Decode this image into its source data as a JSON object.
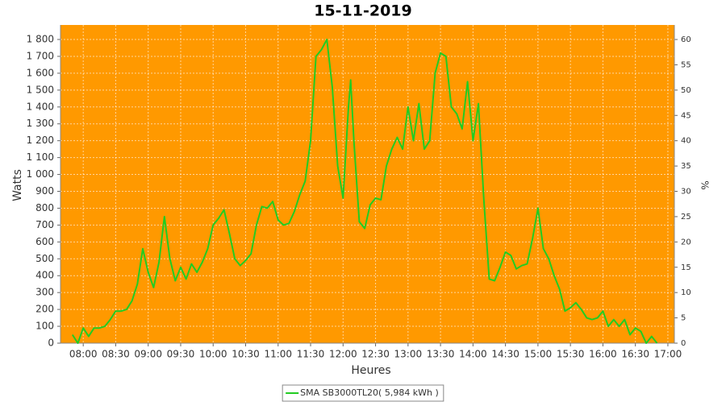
{
  "chart_data": {
    "type": "line",
    "title": "15-11-2019",
    "x_label": "Heures",
    "y_label": "Watts",
    "y2_label": "%",
    "x": [
      "07:50",
      "07:55",
      "08:00",
      "08:05",
      "08:10",
      "08:15",
      "08:20",
      "08:25",
      "08:30",
      "08:35",
      "08:40",
      "08:45",
      "08:50",
      "08:55",
      "09:00",
      "09:05",
      "09:10",
      "09:15",
      "09:20",
      "09:25",
      "09:30",
      "09:35",
      "09:40",
      "09:45",
      "09:50",
      "09:55",
      "10:00",
      "10:05",
      "10:10",
      "10:15",
      "10:20",
      "10:25",
      "10:30",
      "10:35",
      "10:40",
      "10:45",
      "10:50",
      "10:55",
      "11:00",
      "11:05",
      "11:10",
      "11:15",
      "11:20",
      "11:25",
      "11:30",
      "11:35",
      "11:40",
      "11:45",
      "11:50",
      "11:55",
      "12:00",
      "12:05",
      "12:07",
      "12:10",
      "12:15",
      "12:20",
      "12:25",
      "12:30",
      "12:35",
      "12:40",
      "12:45",
      "12:50",
      "12:55",
      "13:00",
      "13:05",
      "13:10",
      "13:15",
      "13:20",
      "13:25",
      "13:30",
      "13:35",
      "13:40",
      "13:45",
      "13:50",
      "13:55",
      "14:00",
      "14:05",
      "14:10",
      "14:15",
      "14:20",
      "14:25",
      "14:30",
      "14:35",
      "14:40",
      "14:45",
      "14:50",
      "14:55",
      "15:00",
      "15:05",
      "15:10",
      "15:15",
      "15:20",
      "15:25",
      "15:30",
      "15:35",
      "15:40",
      "15:45",
      "15:50",
      "15:55",
      "16:00",
      "16:05",
      "16:10",
      "16:15",
      "16:20",
      "16:25",
      "16:30",
      "16:35",
      "16:40",
      "16:45",
      "16:50"
    ],
    "series": [
      {
        "name": "SMA SB3000TL20( 5,984 kWh )",
        "color": "#22cc22",
        "values": [
          50,
          0,
          90,
          40,
          90,
          90,
          100,
          140,
          190,
          190,
          200,
          250,
          350,
          560,
          420,
          330,
          480,
          750,
          500,
          370,
          450,
          380,
          470,
          420,
          480,
          560,
          700,
          740,
          790,
          650,
          500,
          460,
          490,
          530,
          700,
          810,
          800,
          840,
          730,
          700,
          710,
          780,
          880,
          960,
          1200,
          1700,
          1740,
          1800,
          1520,
          1050,
          860,
          1400,
          1560,
          1200,
          720,
          680,
          820,
          860,
          850,
          1050,
          1150,
          1220,
          1150,
          1400,
          1200,
          1420,
          1150,
          1200,
          1600,
          1720,
          1700,
          1400,
          1360,
          1270,
          1550,
          1200,
          1420,
          850,
          380,
          370,
          450,
          540,
          520,
          440,
          460,
          470,
          620,
          800,
          560,
          500,
          400,
          320,
          190,
          210,
          240,
          200,
          150,
          140,
          150,
          190,
          100,
          140,
          100,
          140,
          50,
          90,
          70,
          0,
          40,
          0
        ]
      }
    ],
    "xlim": [
      "07:39",
      "17:06"
    ],
    "xticks": [
      "08:00",
      "08:30",
      "09:00",
      "09:30",
      "10:00",
      "10:30",
      "11:00",
      "11:30",
      "12:00",
      "12:30",
      "13:00",
      "13:30",
      "14:00",
      "14:30",
      "15:00",
      "15:30",
      "16:00",
      "16:30",
      "17:00"
    ],
    "ylim": [
      0,
      1886
    ],
    "yticks": [
      0,
      100,
      200,
      300,
      400,
      500,
      600,
      700,
      800,
      900,
      {
        "value": 1000,
        "label": "1 000"
      },
      {
        "value": 1100,
        "label": "1 100"
      },
      {
        "value": 1200,
        "label": "1 200"
      },
      {
        "value": 1300,
        "label": "1 300"
      },
      {
        "value": 1400,
        "label": "1 400"
      },
      {
        "value": 1500,
        "label": "1 500"
      },
      {
        "value": 1600,
        "label": "1 600"
      },
      {
        "value": 1700,
        "label": "1 700"
      },
      {
        "value": 1800,
        "label": "1 800"
      }
    ],
    "y2lim": [
      0,
      62.87
    ],
    "y2ticks": [
      0,
      5,
      10,
      15,
      20,
      25,
      30,
      35,
      40,
      45,
      50,
      55,
      60
    ],
    "grid": true,
    "background": "#ff9900",
    "legend": "bottom"
  }
}
